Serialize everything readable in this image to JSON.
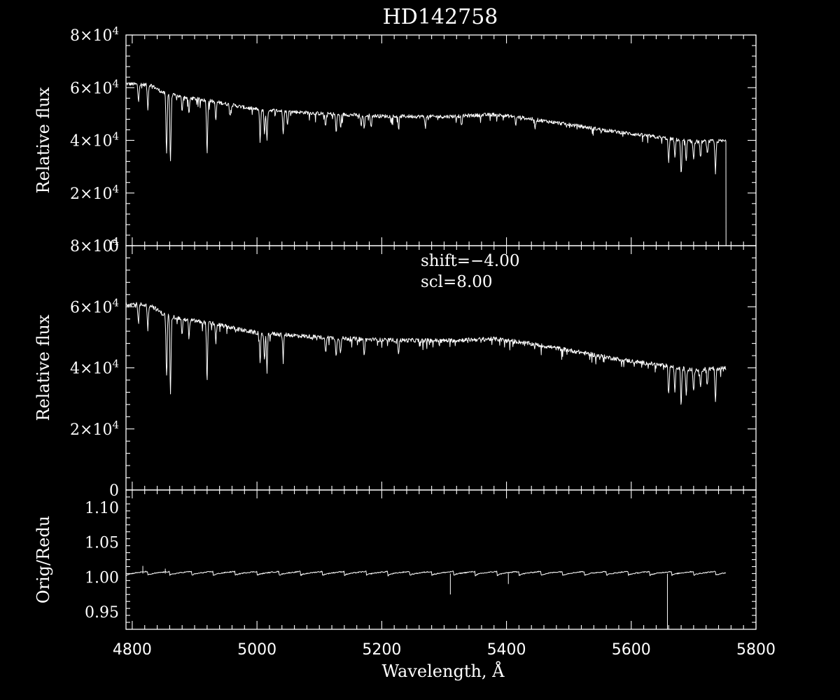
{
  "chart_data": {
    "type": "line",
    "title": "HD142758",
    "xlabel": "Wavelength, Å",
    "xlim": [
      4790,
      5800
    ],
    "xticks": [
      4800,
      5000,
      5200,
      5400,
      5600,
      5800
    ],
    "xtick_labels": [
      "4800",
      "5000",
      "5200",
      "5400",
      "5600",
      "5800"
    ],
    "panels": [
      {
        "ylabel": "Relative flux",
        "ylim": [
          0,
          80000
        ],
        "yticks": [
          0,
          20000,
          40000,
          60000,
          80000
        ],
        "ytick_labels": [
          {
            "m": "0"
          },
          {
            "m": "2×10",
            "e": "4"
          },
          {
            "m": "4×10",
            "e": "4"
          },
          {
            "m": "6×10",
            "e": "4"
          },
          {
            "m": "8×10",
            "e": "4"
          }
        ],
        "continuum": [
          [
            4790,
            61500
          ],
          [
            4830,
            61000
          ],
          [
            4850,
            58000
          ],
          [
            4880,
            56500
          ],
          [
            4930,
            54800
          ],
          [
            4980,
            52500
          ],
          [
            5000,
            51800
          ],
          [
            5050,
            51000
          ],
          [
            5100,
            50200
          ],
          [
            5200,
            49200
          ],
          [
            5300,
            49000
          ],
          [
            5380,
            49800
          ],
          [
            5420,
            48800
          ],
          [
            5500,
            46000
          ],
          [
            5560,
            43800
          ],
          [
            5600,
            42500
          ],
          [
            5650,
            41000
          ],
          [
            5700,
            39500
          ],
          [
            5752,
            39800
          ]
        ],
        "absorption_lines": [
          [
            4810,
            6000
          ],
          [
            4825,
            9000
          ],
          [
            4855,
            23000
          ],
          [
            4861.3,
            26000
          ],
          [
            4880,
            5000
          ],
          [
            4891,
            6000
          ],
          [
            4920,
            20000
          ],
          [
            4934,
            7000
          ],
          [
            4957,
            4000
          ],
          [
            5005,
            12000
          ],
          [
            5012,
            9000
          ],
          [
            5016,
            12000
          ],
          [
            5042,
            8000
          ],
          [
            5049,
            5000
          ],
          [
            5110,
            5000
          ],
          [
            5127,
            7000
          ],
          [
            5134,
            5000
          ],
          [
            5167,
            4000
          ],
          [
            5172,
            5000
          ],
          [
            5183,
            4000
          ],
          [
            5227,
            5000
          ],
          [
            5270,
            4000
          ],
          [
            5328,
            4000
          ],
          [
            5415,
            3000
          ],
          [
            5446,
            3000
          ],
          [
            5660,
            9000
          ],
          [
            5670,
            7000
          ],
          [
            5680,
            13000
          ],
          [
            5688,
            8000
          ],
          [
            5700,
            7000
          ],
          [
            5711,
            6000
          ],
          [
            5722,
            5000
          ],
          [
            5735,
            12000
          ]
        ],
        "drop_to_zero_at": 5752
      },
      {
        "ylabel": "Relative flux",
        "ylim": [
          0,
          80000
        ],
        "yticks": [
          0,
          20000,
          40000,
          60000,
          80000
        ],
        "ytick_labels": [
          {
            "m": "0"
          },
          {
            "m": "2×10",
            "e": "4"
          },
          {
            "m": "4×10",
            "e": "4"
          },
          {
            "m": "6×10",
            "e": "4"
          },
          {
            "m": "8×10",
            "e": "4"
          }
        ],
        "annotations": [
          "shift=−4.00",
          "scl=8.00"
        ],
        "continuum": [
          [
            4790,
            61000
          ],
          [
            4830,
            60500
          ],
          [
            4850,
            57500
          ],
          [
            4880,
            56000
          ],
          [
            4930,
            54500
          ],
          [
            4980,
            52200
          ],
          [
            5000,
            51500
          ],
          [
            5050,
            50800
          ],
          [
            5100,
            50000
          ],
          [
            5200,
            49100
          ],
          [
            5300,
            48900
          ],
          [
            5380,
            49500
          ],
          [
            5420,
            48500
          ],
          [
            5500,
            45800
          ],
          [
            5560,
            43500
          ],
          [
            5600,
            42200
          ],
          [
            5650,
            40800
          ],
          [
            5700,
            39300
          ],
          [
            5752,
            40000
          ]
        ],
        "absorption_lines": [
          [
            4810,
            6000
          ],
          [
            4825,
            8000
          ],
          [
            4855,
            20000
          ],
          [
            4861.3,
            25000
          ],
          [
            4880,
            5000
          ],
          [
            4891,
            6000
          ],
          [
            4920,
            19000
          ],
          [
            4934,
            6000
          ],
          [
            5005,
            10000
          ],
          [
            5012,
            9000
          ],
          [
            5016,
            11000
          ],
          [
            5042,
            7000
          ],
          [
            5110,
            5000
          ],
          [
            5127,
            6000
          ],
          [
            5134,
            5000
          ],
          [
            5172,
            5000
          ],
          [
            5227,
            4000
          ],
          [
            5660,
            9000
          ],
          [
            5670,
            8000
          ],
          [
            5680,
            12000
          ],
          [
            5688,
            8000
          ],
          [
            5700,
            7000
          ],
          [
            5711,
            6000
          ],
          [
            5722,
            5000
          ],
          [
            5735,
            11000
          ]
        ]
      },
      {
        "ylabel": "Orig/Redu",
        "ylim": [
          0.925,
          1.125
        ],
        "yticks": [
          0.95,
          1.0,
          1.05,
          1.1
        ],
        "ytick_labels": [
          {
            "m": "0.95"
          },
          {
            "m": "1.00"
          },
          {
            "m": "1.05"
          },
          {
            "m": "1.10"
          }
        ],
        "sawtooth_start": 4790,
        "sawtooth_end": 5752,
        "sawtooth_period": 35,
        "sawtooth_low": 1.002,
        "sawtooth_high": 1.008,
        "spikes": [
          [
            4817,
            1.016
          ],
          [
            4853,
            1.012
          ],
          [
            5310,
            0.975
          ],
          [
            5403,
            0.99
          ],
          [
            5658,
            0.925
          ]
        ]
      }
    ]
  }
}
